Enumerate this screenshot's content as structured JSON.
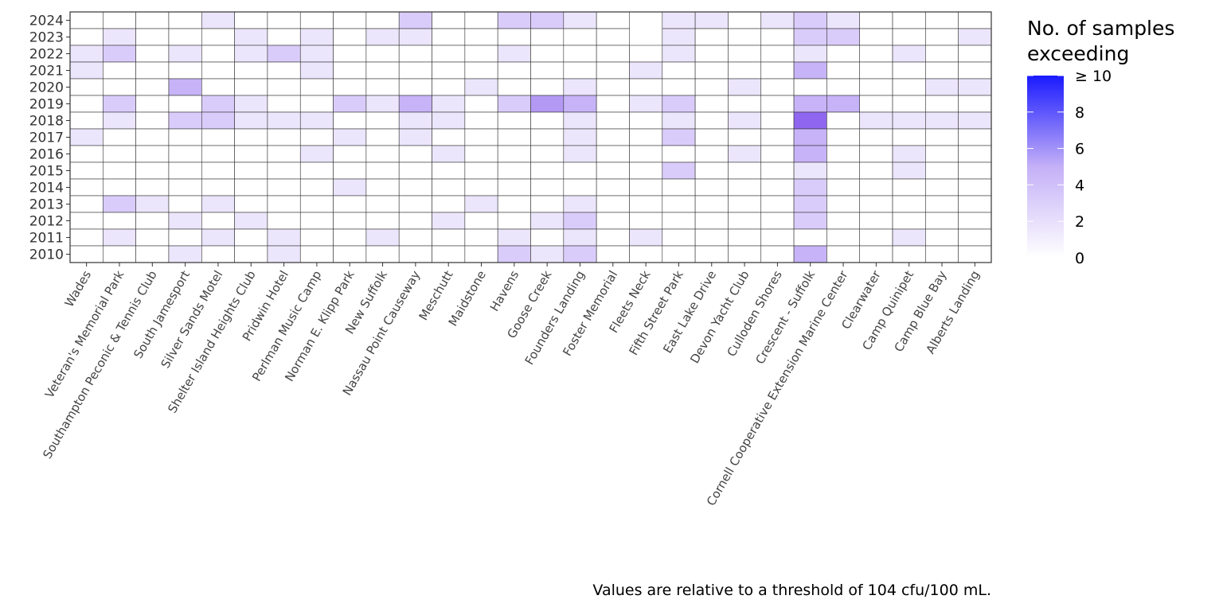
{
  "chart_data": {
    "type": "heatmap",
    "legend_title": [
      "No. of samples",
      "exceeding"
    ],
    "legend_position": "right",
    "legend_ticks": [
      "0",
      "2",
      "4",
      "6",
      "8",
      "≥ 10"
    ],
    "legend_tick_values": [
      0,
      2,
      4,
      6,
      8,
      10
    ],
    "color_low": "#ffffff",
    "color_high": "#1a1aff",
    "color_mid": "#8f66ef",
    "value_range": [
      0,
      10
    ],
    "caption": "Values are relative to a threshold of 104 cfu/100 mL.",
    "years": [
      "2024",
      "2023",
      "2022",
      "2021",
      "2020",
      "2019",
      "2018",
      "2017",
      "2016",
      "2015",
      "2014",
      "2013",
      "2012",
      "2011",
      "2010"
    ],
    "sites": [
      "Wades",
      "Veteran's Memorial Park",
      "Southampton Peconic & Tennis Club",
      "South Jamesport",
      "Silver Sands Motel",
      "Shelter Island Heights Club",
      "Pridwin Hotel",
      "Perlman Music Camp",
      "Norman E. Klipp Park",
      "New Suffolk",
      "Nassau Point Causeway",
      "Meschutt",
      "Maidstone",
      "Havens",
      "Goose Creek",
      "Founders Landing",
      "Foster Memorial",
      "Fleets Neck",
      "Fifth Street Park",
      "East Lake Drive",
      "Devon Yacht Club",
      "Culloden Shores",
      "Crescent - Suffolk",
      "Cornell Cooperative Extension Marine Center",
      "Clearwater",
      "Camp Quinipet",
      "Camp Blue Bay",
      "Alberts Landing"
    ],
    "values": [
      [
        0,
        0,
        0,
        0,
        1,
        0,
        0,
        0,
        0,
        0,
        2,
        0,
        0,
        2,
        2,
        1,
        0,
        null,
        1,
        1,
        0,
        1,
        2,
        1,
        0,
        0,
        0,
        0
      ],
      [
        0,
        1,
        0,
        0,
        0,
        1,
        0,
        1,
        0,
        1,
        1,
        0,
        0,
        0,
        0,
        0,
        0,
        null,
        1,
        0,
        0,
        0,
        2,
        2,
        0,
        0,
        0,
        1
      ],
      [
        1,
        2,
        0,
        1,
        0,
        1,
        2,
        1,
        0,
        0,
        0,
        0,
        0,
        1,
        0,
        0,
        0,
        0,
        1,
        0,
        0,
        0,
        1,
        0,
        0,
        1,
        0,
        0
      ],
      [
        1,
        0,
        0,
        0,
        0,
        0,
        0,
        1,
        0,
        0,
        0,
        0,
        0,
        0,
        0,
        0,
        0,
        1,
        0,
        0,
        0,
        0,
        3,
        0,
        0,
        0,
        0,
        0
      ],
      [
        0,
        0,
        0,
        3,
        0,
        0,
        0,
        0,
        0,
        0,
        0,
        0,
        1,
        0,
        0,
        1,
        0,
        0,
        0,
        0,
        1,
        0,
        0,
        0,
        0,
        0,
        1,
        1
      ],
      [
        0,
        2,
        0,
        0,
        2,
        1,
        0,
        0,
        2,
        1,
        3,
        1,
        0,
        2,
        4,
        3,
        0,
        1,
        2,
        0,
        0,
        0,
        3,
        3,
        0,
        0,
        0,
        0
      ],
      [
        0,
        1,
        0,
        2,
        2,
        1,
        1,
        1,
        0,
        0,
        1,
        1,
        0,
        0,
        0,
        1,
        0,
        0,
        1,
        0,
        1,
        0,
        6,
        0,
        1,
        1,
        1,
        1
      ],
      [
        1,
        0,
        0,
        0,
        0,
        0,
        0,
        0,
        1,
        0,
        1,
        0,
        0,
        0,
        0,
        1,
        0,
        0,
        2,
        0,
        0,
        0,
        3,
        0,
        0,
        0,
        0,
        0
      ],
      [
        0,
        0,
        0,
        0,
        0,
        0,
        0,
        1,
        0,
        0,
        0,
        1,
        0,
        0,
        0,
        1,
        0,
        0,
        0,
        0,
        1,
        0,
        3,
        0,
        0,
        1,
        0,
        0
      ],
      [
        0,
        0,
        0,
        0,
        0,
        0,
        0,
        0,
        0,
        0,
        0,
        0,
        0,
        0,
        0,
        0,
        0,
        0,
        2,
        0,
        0,
        0,
        1,
        0,
        0,
        1,
        0,
        0
      ],
      [
        0,
        0,
        0,
        0,
        0,
        0,
        0,
        0,
        1,
        0,
        0,
        0,
        0,
        0,
        0,
        0,
        0,
        0,
        0,
        0,
        0,
        0,
        2,
        0,
        0,
        0,
        0,
        0
      ],
      [
        0,
        2,
        1,
        0,
        1,
        0,
        0,
        0,
        0,
        0,
        0,
        0,
        1,
        0,
        0,
        1,
        0,
        0,
        0,
        0,
        0,
        0,
        2,
        0,
        0,
        0,
        0,
        0
      ],
      [
        0,
        0,
        0,
        1,
        0,
        1,
        0,
        0,
        0,
        0,
        0,
        1,
        0,
        0,
        1,
        2,
        0,
        0,
        0,
        0,
        0,
        0,
        2,
        0,
        0,
        0,
        0,
        0
      ],
      [
        0,
        1,
        0,
        0,
        1,
        0,
        1,
        0,
        0,
        1,
        0,
        0,
        0,
        1,
        0,
        1,
        0,
        1,
        0,
        0,
        0,
        0,
        0,
        0,
        0,
        1,
        0,
        0
      ],
      [
        0,
        0,
        0,
        1,
        0,
        0,
        1,
        0,
        0,
        0,
        0,
        0,
        0,
        2,
        1,
        2,
        0,
        0,
        0,
        0,
        0,
        0,
        3,
        0,
        0,
        0,
        0,
        0
      ]
    ]
  }
}
